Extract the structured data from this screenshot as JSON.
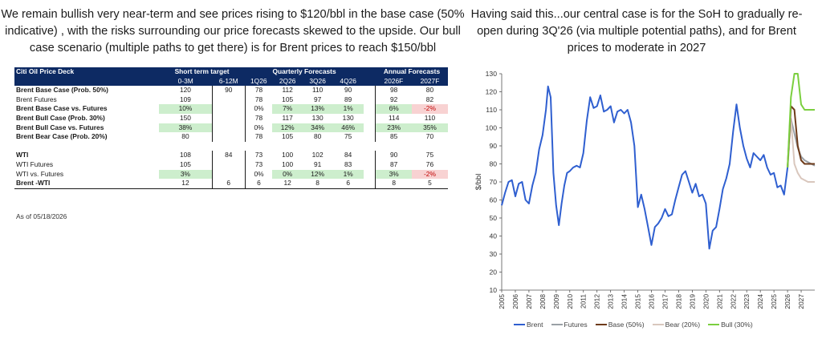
{
  "left_header": "We remain bullish very near-term and see prices rising to $120/bbl in the base case (50% indicative) , with the risks surrounding our price forecasts skewed to the upside. Our bull case scenario (multiple paths to get there) is for Brent prices to reach $150/bbl",
  "right_header": "Having said this...our central case is for the SoH to gradually re-open during 3Q'26 (via multiple potential paths), and for Brent prices to moderate in 2027",
  "table": {
    "title": "Citi Oil Price Deck",
    "group_short": "Short term target",
    "group_quarterly": "Quarterly Forecasts",
    "group_annual": "Annual Forecasts",
    "col_headers": [
      "0-3M",
      "6-12M",
      "1Q26",
      "2Q26",
      "3Q26",
      "4Q26",
      "2026F",
      "2027F"
    ],
    "rows": [
      {
        "label": "Brent Base Case (Prob. 50%)",
        "bold": true,
        "cells": [
          "120",
          "90",
          "78",
          "112",
          "110",
          "90",
          "98",
          "80"
        ],
        "hl": [
          "",
          "",
          "",
          "",
          "",
          "",
          "",
          ""
        ]
      },
      {
        "label": "Brent Futures",
        "bold": false,
        "cells": [
          "109",
          "",
          "78",
          "105",
          "97",
          "89",
          "92",
          "82"
        ],
        "hl": [
          "",
          "",
          "",
          "",
          "",
          "",
          "",
          ""
        ]
      },
      {
        "label": "Brent Base Case vs. Futures",
        "bold": true,
        "cells": [
          "10%",
          "",
          "0%",
          "7%",
          "13%",
          "1%",
          "6%",
          "-2%"
        ],
        "hl": [
          "g",
          "",
          "",
          "g",
          "g",
          "g",
          "g",
          "r"
        ]
      },
      {
        "label": "Brent Bull Case (Prob. 30%)",
        "bold": true,
        "cells": [
          "150",
          "",
          "78",
          "117",
          "130",
          "130",
          "114",
          "110"
        ],
        "hl": [
          "",
          "",
          "",
          "",
          "",
          "",
          "",
          ""
        ]
      },
      {
        "label": "Brent Bull Case vs. Futures",
        "bold": true,
        "cells": [
          "38%",
          "",
          "0%",
          "12%",
          "34%",
          "46%",
          "23%",
          "35%"
        ],
        "hl": [
          "g",
          "",
          "",
          "g",
          "g",
          "g",
          "g",
          "g"
        ]
      },
      {
        "label": "Brent Bear Case (Prob. 20%)",
        "bold": true,
        "cells": [
          "80",
          "",
          "78",
          "105",
          "80",
          "75",
          "85",
          "70"
        ],
        "hl": [
          "",
          "",
          "",
          "",
          "",
          "",
          "",
          ""
        ]
      },
      {
        "label": "WTI",
        "bold": true,
        "cells": [
          "108",
          "84",
          "73",
          "100",
          "102",
          "84",
          "90",
          "75"
        ],
        "hl": [
          "",
          "",
          "",
          "",
          "",
          "",
          "",
          ""
        ]
      },
      {
        "label": "WTI Futures",
        "bold": false,
        "cells": [
          "105",
          "",
          "73",
          "100",
          "91",
          "83",
          "87",
          "76"
        ],
        "hl": [
          "",
          "",
          "",
          "",
          "",
          "",
          "",
          ""
        ]
      },
      {
        "label": "WTI vs. Futures",
        "bold": false,
        "cells": [
          "3%",
          "",
          "0%",
          "0%",
          "12%",
          "1%",
          "3%",
          "-2%"
        ],
        "hl": [
          "g",
          "",
          "",
          "g",
          "g",
          "g",
          "g",
          "r"
        ]
      },
      {
        "label": "Brent -WTI",
        "bold": true,
        "cells": [
          "12",
          "6",
          "6",
          "12",
          "8",
          "6",
          "8",
          "5"
        ],
        "hl": [
          "",
          "",
          "",
          "",
          "",
          "",
          "",
          ""
        ]
      }
    ],
    "as_of": "As of 05/18/2026"
  },
  "chart_data": {
    "type": "line",
    "ylabel": "$/bbl",
    "ylim": [
      10,
      130
    ],
    "yticks": [
      10,
      20,
      30,
      40,
      50,
      60,
      70,
      80,
      90,
      100,
      110,
      120,
      130
    ],
    "xlim": [
      2005.0,
      2028.0
    ],
    "xticks": [
      "2005",
      "2006",
      "2007",
      "2008",
      "2009",
      "2010",
      "2011",
      "2012",
      "2013",
      "2014",
      "2015",
      "2016",
      "2017",
      "2018",
      "2019",
      "2020",
      "2021",
      "2022",
      "2023",
      "2024",
      "2025",
      "2026",
      "2027"
    ],
    "grid": false,
    "legend_position": "bottom",
    "series": [
      {
        "name": "Brent",
        "color": "#2f5fd0",
        "points": [
          [
            2005.0,
            57
          ],
          [
            2005.25,
            64
          ],
          [
            2005.5,
            70
          ],
          [
            2005.75,
            71
          ],
          [
            2006.0,
            62
          ],
          [
            2006.25,
            69
          ],
          [
            2006.5,
            70
          ],
          [
            2006.75,
            60
          ],
          [
            2007.0,
            58
          ],
          [
            2007.25,
            68
          ],
          [
            2007.5,
            75
          ],
          [
            2007.75,
            88
          ],
          [
            2008.0,
            96
          ],
          [
            2008.25,
            110
          ],
          [
            2008.4,
            123
          ],
          [
            2008.6,
            117
          ],
          [
            2008.8,
            75
          ],
          [
            2009.0,
            57
          ],
          [
            2009.2,
            46
          ],
          [
            2009.4,
            58
          ],
          [
            2009.6,
            68
          ],
          [
            2009.8,
            75
          ],
          [
            2010.0,
            76
          ],
          [
            2010.25,
            78
          ],
          [
            2010.5,
            79
          ],
          [
            2010.75,
            78
          ],
          [
            2011.0,
            86
          ],
          [
            2011.25,
            104
          ],
          [
            2011.5,
            117
          ],
          [
            2011.75,
            111
          ],
          [
            2012.0,
            112
          ],
          [
            2012.25,
            118
          ],
          [
            2012.5,
            109
          ],
          [
            2012.75,
            110
          ],
          [
            2013.0,
            112
          ],
          [
            2013.25,
            103
          ],
          [
            2013.5,
            109
          ],
          [
            2013.75,
            110
          ],
          [
            2014.0,
            108
          ],
          [
            2014.25,
            110
          ],
          [
            2014.5,
            103
          ],
          [
            2014.75,
            90
          ],
          [
            2015.0,
            56
          ],
          [
            2015.25,
            63
          ],
          [
            2015.5,
            55
          ],
          [
            2015.75,
            45
          ],
          [
            2016.0,
            35
          ],
          [
            2016.25,
            45
          ],
          [
            2016.5,
            47
          ],
          [
            2016.75,
            50
          ],
          [
            2017.0,
            55
          ],
          [
            2017.25,
            51
          ],
          [
            2017.5,
            52
          ],
          [
            2017.75,
            60
          ],
          [
            2018.0,
            67
          ],
          [
            2018.25,
            74
          ],
          [
            2018.5,
            76
          ],
          [
            2018.75,
            70
          ],
          [
            2019.0,
            64
          ],
          [
            2019.25,
            69
          ],
          [
            2019.5,
            62
          ],
          [
            2019.75,
            63
          ],
          [
            2020.0,
            58
          ],
          [
            2020.25,
            33
          ],
          [
            2020.5,
            43
          ],
          [
            2020.75,
            45
          ],
          [
            2021.0,
            55
          ],
          [
            2021.25,
            66
          ],
          [
            2021.5,
            72
          ],
          [
            2021.75,
            80
          ],
          [
            2022.0,
            98
          ],
          [
            2022.25,
            113
          ],
          [
            2022.5,
            100
          ],
          [
            2022.75,
            90
          ],
          [
            2023.0,
            83
          ],
          [
            2023.25,
            78
          ],
          [
            2023.5,
            86
          ],
          [
            2023.75,
            84
          ],
          [
            2024.0,
            82
          ],
          [
            2024.25,
            85
          ],
          [
            2024.5,
            78
          ],
          [
            2024.75,
            74
          ],
          [
            2025.0,
            75
          ],
          [
            2025.25,
            67
          ],
          [
            2025.5,
            68
          ],
          [
            2025.75,
            63
          ],
          [
            2026.0,
            78
          ]
        ]
      },
      {
        "name": "Futures",
        "color": "#9aa0a6",
        "points": [
          [
            2026.0,
            78
          ],
          [
            2026.25,
            105
          ],
          [
            2026.5,
            97
          ],
          [
            2026.75,
            89
          ],
          [
            2027.0,
            84
          ],
          [
            2027.25,
            82
          ],
          [
            2027.5,
            81
          ],
          [
            2027.75,
            80
          ],
          [
            2028.0,
            79
          ]
        ]
      },
      {
        "name": "Base (50%)",
        "color": "#6e3b1a",
        "points": [
          [
            2026.0,
            78
          ],
          [
            2026.25,
            112
          ],
          [
            2026.5,
            110
          ],
          [
            2026.75,
            90
          ],
          [
            2027.0,
            82
          ],
          [
            2027.25,
            80
          ],
          [
            2027.5,
            80
          ],
          [
            2027.75,
            80
          ],
          [
            2028.0,
            80
          ]
        ]
      },
      {
        "name": "Bear (20%)",
        "color": "#d9c7bd",
        "points": [
          [
            2026.0,
            78
          ],
          [
            2026.25,
            105
          ],
          [
            2026.5,
            80
          ],
          [
            2026.75,
            75
          ],
          [
            2027.0,
            72
          ],
          [
            2027.25,
            71
          ],
          [
            2027.5,
            70
          ],
          [
            2027.75,
            70
          ],
          [
            2028.0,
            70
          ]
        ]
      },
      {
        "name": "Bull (30%)",
        "color": "#7bcf3f",
        "points": [
          [
            2026.0,
            78
          ],
          [
            2026.25,
            117
          ],
          [
            2026.5,
            130
          ],
          [
            2026.75,
            130
          ],
          [
            2027.0,
            113
          ],
          [
            2027.25,
            110
          ],
          [
            2027.5,
            110
          ],
          [
            2027.75,
            110
          ],
          [
            2028.0,
            110
          ]
        ]
      }
    ]
  }
}
